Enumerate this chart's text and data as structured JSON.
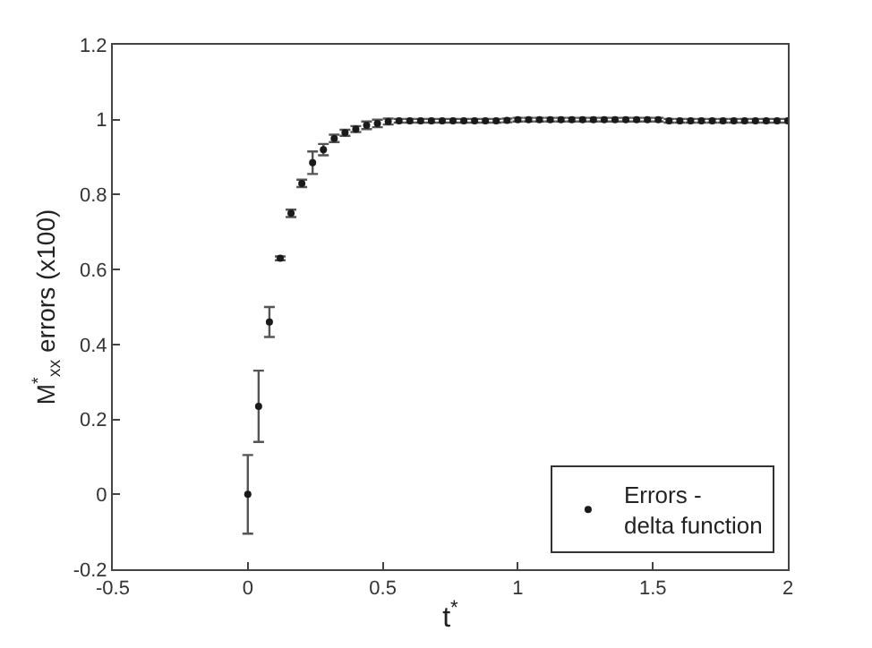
{
  "chart_data": {
    "type": "scatter",
    "xlabel": "t$^{*}$",
    "ylabel": "M$^{*}$$_{xx}$ errors (x100)",
    "x": [
      0,
      0.04,
      0.08,
      0.12,
      0.16,
      0.2,
      0.24,
      0.28,
      0.32,
      0.36,
      0.4,
      0.44,
      0.48,
      0.52,
      0.56,
      0.6,
      0.64,
      0.68,
      0.72,
      0.76,
      0.8,
      0.84,
      0.88,
      0.92,
      0.96,
      1.0,
      1.04,
      1.08,
      1.12,
      1.16,
      1.2,
      1.24,
      1.28,
      1.32,
      1.36,
      1.4,
      1.44,
      1.48,
      1.52,
      1.56,
      1.6,
      1.64,
      1.68,
      1.72,
      1.76,
      1.8,
      1.84,
      1.88,
      1.92,
      1.96,
      2.0
    ],
    "series": [
      {
        "name": "Errors -\ndelta function",
        "color": "#1a1a1a",
        "values": [
          0,
          0.235,
          0.46,
          0.63,
          0.75,
          0.83,
          0.885,
          0.92,
          0.95,
          0.965,
          0.975,
          0.985,
          0.99,
          0.995,
          0.997,
          0.997,
          0.997,
          0.997,
          0.997,
          0.997,
          0.997,
          0.997,
          0.997,
          0.997,
          0.998,
          1.0,
          1.0,
          1.0,
          1.0,
          1.0,
          1.0,
          1.0,
          1.0,
          1.0,
          1.0,
          1.0,
          1.0,
          1.0,
          1.0,
          0.997,
          0.997,
          0.997,
          0.997,
          0.997,
          0.997,
          0.997,
          0.997,
          0.997,
          0.997,
          0.997,
          0.997
        ],
        "errors": [
          0.105,
          0.095,
          0.04,
          0.005,
          0.01,
          0.01,
          0.03,
          0.015,
          0.01,
          0.008,
          0.008,
          0.01,
          0.01,
          0.008,
          0.005,
          0.005,
          0.005,
          0.005,
          0.005,
          0.005,
          0.005,
          0.005,
          0.005,
          0.005,
          0.005,
          0.005,
          0.005,
          0.005,
          0.005,
          0.005,
          0.005,
          0.005,
          0.005,
          0.005,
          0.005,
          0.005,
          0.005,
          0.005,
          0.005,
          0.005,
          0.005,
          0.005,
          0.005,
          0.005,
          0.005,
          0.005,
          0.005,
          0.005,
          0.005,
          0.005,
          0.005
        ]
      }
    ],
    "xlim": [
      -0.5,
      2
    ],
    "xticks": [
      {
        "value": -0.5,
        "label": "-0.5"
      },
      0,
      0.5,
      1,
      1.5,
      2
    ],
    "ylim": [
      -0.2,
      1.2
    ],
    "yticks": [
      {
        "value": -0.2,
        "label": "-0.2"
      },
      0,
      0.2,
      0.4,
      0.6,
      0.8,
      1,
      1.2
    ],
    "legend": "bottom right",
    "marker": "circle",
    "line_style": "none"
  }
}
